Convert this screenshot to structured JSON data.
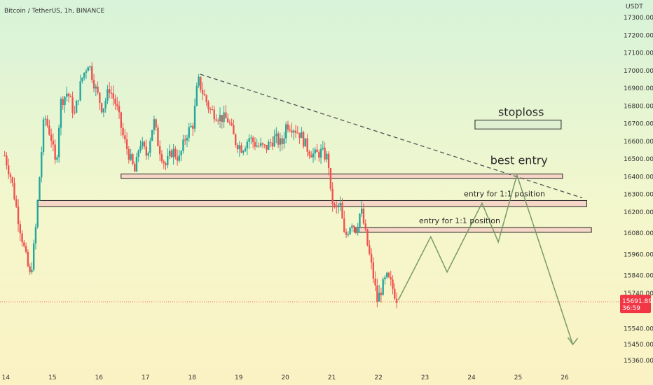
{
  "header": {
    "symbol_line": "Bitcoin / TetherUS, 1h, BINANCE",
    "currency": "USDT"
  },
  "price_badge": {
    "price": "15691.89",
    "countdown": "36:59",
    "color": "#f23645"
  },
  "colors": {
    "up": "#26a69a",
    "down": "#ef5350",
    "trendline": "#555555",
    "projection": "#7a9a66",
    "zone_fill": "#f6d6c6",
    "stop_fill": "#dff0d2"
  },
  "chart_data": {
    "type": "candlestick",
    "price_scale": {
      "min": 15300,
      "max": 17400,
      "ticks": [
        17300,
        17200,
        17100,
        17000,
        16900,
        16800,
        16700,
        16600,
        16500,
        16400,
        16300,
        16200,
        16080,
        15960,
        15840,
        15740,
        15540,
        15450,
        15360
      ],
      "tick_labels": [
        "17300.00",
        "17200.00",
        "17100.00",
        "17000.00",
        "16900.00",
        "16800.00",
        "16700.00",
        "16600.00",
        "16500.00",
        "16400.00",
        "16300.00",
        "16200.00",
        "16080.00",
        "15960.00",
        "15840.00",
        "15740.00",
        "15540.00",
        "15450.00",
        "15360.00"
      ]
    },
    "time_scale": {
      "labels": [
        "14",
        "15",
        "16",
        "17",
        "18",
        "19",
        "20",
        "21",
        "22",
        "23",
        "24",
        "25",
        "26"
      ],
      "positions": [
        14,
        15,
        16,
        17,
        18,
        19,
        20,
        21,
        22,
        23,
        24,
        25,
        26
      ],
      "range": [
        13.9,
        27.2
      ]
    },
    "price_path": [
      [
        14.0,
        16520
      ],
      [
        14.15,
        16380
      ],
      [
        14.3,
        16150
      ],
      [
        14.45,
        15950
      ],
      [
        14.55,
        15830
      ],
      [
        14.65,
        16050
      ],
      [
        14.75,
        16400
      ],
      [
        14.85,
        16750
      ],
      [
        15.0,
        16620
      ],
      [
        15.1,
        16450
      ],
      [
        15.2,
        16820
      ],
      [
        15.35,
        16880
      ],
      [
        15.5,
        16750
      ],
      [
        15.65,
        16950
      ],
      [
        15.8,
        17050
      ],
      [
        15.95,
        16900
      ],
      [
        16.1,
        16780
      ],
      [
        16.25,
        16900
      ],
      [
        16.4,
        16800
      ],
      [
        16.55,
        16620
      ],
      [
        16.7,
        16500
      ],
      [
        16.8,
        16420
      ],
      [
        16.9,
        16600
      ],
      [
        17.05,
        16520
      ],
      [
        17.2,
        16720
      ],
      [
        17.3,
        16580
      ],
      [
        17.45,
        16460
      ],
      [
        17.6,
        16550
      ],
      [
        17.75,
        16500
      ],
      [
        17.9,
        16640
      ],
      [
        18.05,
        16700
      ],
      [
        18.15,
        16950
      ],
      [
        18.25,
        16880
      ],
      [
        18.4,
        16780
      ],
      [
        18.6,
        16740
      ],
      [
        18.8,
        16720
      ],
      [
        18.95,
        16600
      ],
      [
        19.1,
        16560
      ],
      [
        19.25,
        16620
      ],
      [
        19.4,
        16580
      ],
      [
        19.6,
        16560
      ],
      [
        19.8,
        16620
      ],
      [
        19.95,
        16580
      ],
      [
        20.05,
        16700
      ],
      [
        20.2,
        16680
      ],
      [
        20.35,
        16640
      ],
      [
        20.5,
        16560
      ],
      [
        20.65,
        16520
      ],
      [
        20.8,
        16540
      ],
      [
        20.95,
        16500
      ],
      [
        21.0,
        16300
      ],
      [
        21.1,
        16200
      ],
      [
        21.2,
        16250
      ],
      [
        21.3,
        16050
      ],
      [
        21.45,
        16150
      ],
      [
        21.55,
        16100
      ],
      [
        21.65,
        16220
      ],
      [
        21.8,
        16000
      ],
      [
        21.9,
        15860
      ],
      [
        22.0,
        15700
      ],
      [
        22.1,
        15770
      ],
      [
        22.2,
        15830
      ],
      [
        22.3,
        15790
      ],
      [
        22.4,
        15720
      ],
      [
        22.45,
        15692
      ]
    ],
    "candle_seed": 7,
    "trendline": {
      "from": [
        18.2,
        16980
      ],
      "to": [
        26.4,
        16280
      ],
      "style": "dashed"
    },
    "zones": [
      {
        "x0": 16.5,
        "x1": 25.98,
        "y0": 16390,
        "y1": 16415,
        "label": ""
      },
      {
        "x0": 14.7,
        "x1": 26.5,
        "y0": 16230,
        "y1": 16265,
        "label": "entry for 1:1 position"
      },
      {
        "x0": 21.52,
        "x1": 26.6,
        "y0": 16085,
        "y1": 16112,
        "label": "entry for 1:1 position"
      }
    ],
    "stoploss_box": {
      "x0": 24.1,
      "x1": 25.95,
      "y0": 16670,
      "y1": 16720,
      "label": "stoploss"
    },
    "best_entry": {
      "label": "best entry",
      "x": 25.0,
      "y": 16440
    },
    "projection_path": [
      [
        22.45,
        15700
      ],
      [
        23.15,
        16060
      ],
      [
        23.5,
        15860
      ],
      [
        24.25,
        16250
      ],
      [
        24.6,
        16030
      ],
      [
        25.0,
        16410
      ],
      [
        26.2,
        15450
      ]
    ],
    "current_price": 15691.89
  }
}
